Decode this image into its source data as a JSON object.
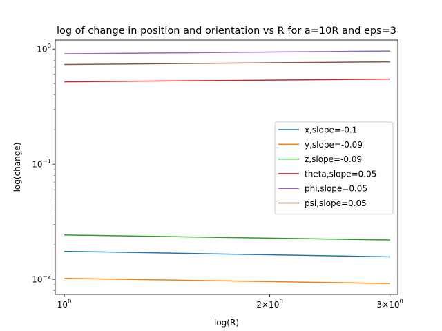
{
  "chart_data": {
    "type": "line",
    "title": "log of change in position and orientation vs R for a=10R and eps=3",
    "xlabel": "log(R)",
    "ylabel": "log(change)",
    "xscale": "log",
    "yscale": "log",
    "xlim": [
      0.97,
      3.08
    ],
    "ylim": [
      0.0074,
      1.2
    ],
    "x": [
      1,
      1.25,
      1.5,
      1.75,
      2,
      2.25,
      2.5,
      2.75,
      3
    ],
    "x_ticks": [
      {
        "value": 1,
        "base": "10",
        "exp": "0",
        "coef": ""
      },
      {
        "value": 2,
        "base": "10",
        "exp": "0",
        "coef": "2×"
      },
      {
        "value": 3,
        "base": "10",
        "exp": "0",
        "coef": "3×"
      }
    ],
    "y_ticks": [
      {
        "value": 0.01,
        "base": "10",
        "exp": "−2"
      },
      {
        "value": 0.1,
        "base": "10",
        "exp": "−1"
      },
      {
        "value": 1,
        "base": "10",
        "exp": "0"
      }
    ],
    "legend_position": "center-right",
    "series": [
      {
        "name": "x,slope=-0.1",
        "color": "#1f77b4",
        "values": [
          0.0175,
          0.01712,
          0.01681,
          0.01656,
          0.01634,
          0.01615,
          0.01598,
          0.01583,
          0.0157
        ]
      },
      {
        "name": "y,slope=-0.09",
        "color": "#ff7f0e",
        "values": [
          0.0102,
          0.00999,
          0.00982,
          0.00968,
          0.00956,
          0.00946,
          0.00937,
          0.00928,
          0.00921
        ]
      },
      {
        "name": "z,slope=-0.09",
        "color": "#2ca02c",
        "values": [
          0.0243,
          0.02381,
          0.02341,
          0.02309,
          0.02281,
          0.02256,
          0.02235,
          0.02215,
          0.02198
        ]
      },
      {
        "name": "theta,slope=0.05",
        "color": "#d62728",
        "values": [
          0.52,
          0.526,
          0.5308,
          0.5349,
          0.5384,
          0.5415,
          0.5444,
          0.5469,
          0.5493
        ]
      },
      {
        "name": "phi,slope=0.05",
        "color": "#9467bd",
        "values": [
          0.91,
          0.9205,
          0.9289,
          0.9361,
          0.9423,
          0.9477,
          0.9526,
          0.9571,
          0.9612
        ]
      },
      {
        "name": "psi,slope=0.05",
        "color": "#8c564b",
        "values": [
          0.735,
          0.7435,
          0.7503,
          0.756,
          0.761,
          0.7654,
          0.7694,
          0.773,
          0.7763
        ]
      }
    ]
  }
}
